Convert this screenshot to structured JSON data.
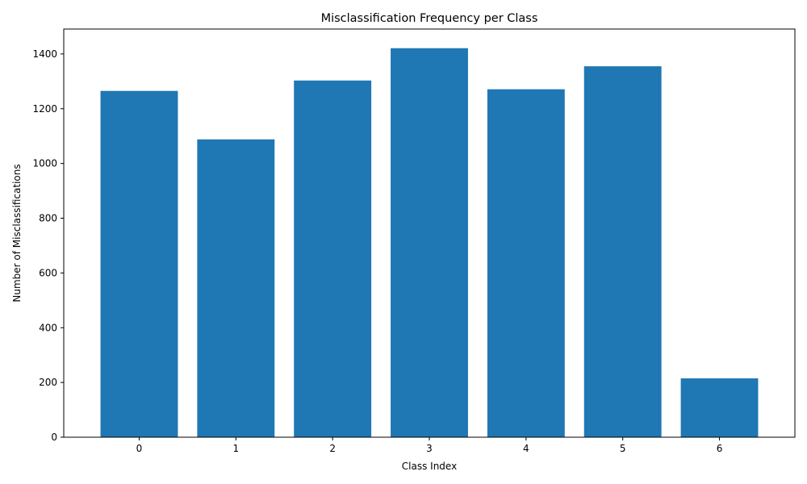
{
  "chart_data": {
    "type": "bar",
    "title": "Misclassification Frequency per Class",
    "xlabel": "Class Index",
    "ylabel": "Number of Misclassifications",
    "categories": [
      "0",
      "1",
      "2",
      "3",
      "4",
      "5",
      "6"
    ],
    "values": [
      1265,
      1088,
      1303,
      1421,
      1271,
      1355,
      215
    ],
    "ylim": [
      0,
      1491
    ],
    "yticks": [
      0,
      200,
      400,
      600,
      800,
      1000,
      1200,
      1400
    ],
    "bar_color": "#1f77b4",
    "grid": false,
    "legend": "none"
  }
}
